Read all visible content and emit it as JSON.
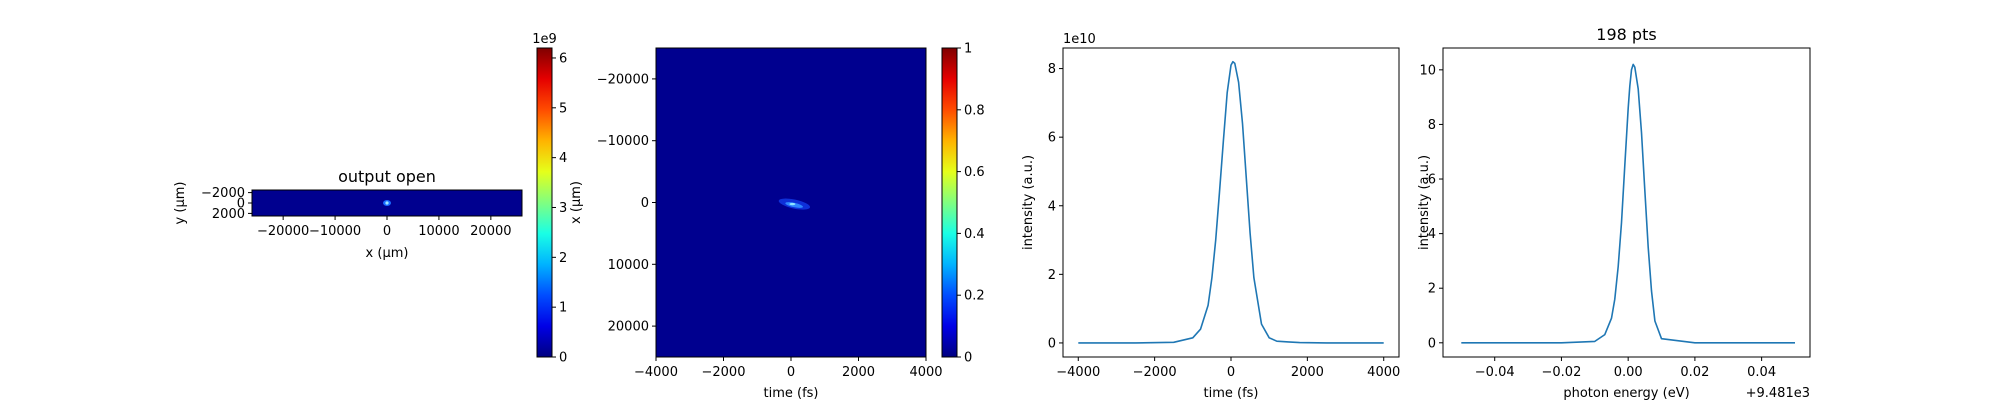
{
  "chart_data": [
    {
      "type": "heatmap",
      "title": "output open",
      "xlabel": "x (μm)",
      "ylabel": "y (μm)",
      "xlim": [
        -26000,
        26000
      ],
      "ylim": [
        2500,
        -2500
      ],
      "xticks": [
        -20000,
        -10000,
        0,
        10000,
        20000
      ],
      "yticks": [
        -2000,
        0,
        2000
      ],
      "hotspot": {
        "x": 0,
        "y": 0
      },
      "colorbar": {
        "exponent_label": "1e9",
        "vmin": 0,
        "vmax": 6.2,
        "ticks": [
          0,
          1,
          2,
          3,
          4,
          5,
          6
        ],
        "colormap": "jet"
      }
    },
    {
      "type": "heatmap",
      "xlabel": "time (fs)",
      "ylabel": "x (μm)",
      "xlim": [
        -4000,
        4000
      ],
      "ylim": [
        -25000,
        25000
      ],
      "xticks": [
        -4000,
        -2000,
        0,
        2000,
        4000
      ],
      "yticks": [
        -20000,
        -10000,
        0,
        10000,
        20000
      ],
      "hotspot": {
        "x": 100,
        "y": 250
      },
      "colorbar": {
        "vmin": 0,
        "vmax": 1.0,
        "ticks": [
          0.0,
          0.2,
          0.4,
          0.6,
          0.8,
          1.0
        ],
        "colormap": "jet"
      }
    },
    {
      "type": "line",
      "xlabel": "time (fs)",
      "ylabel": "intensity (a.u.)",
      "exponent_label": "1e10",
      "xlim": [
        -4400,
        4400
      ],
      "ylim": [
        -0.41,
        8.6
      ],
      "xticks": [
        -4000,
        -2000,
        0,
        2000,
        4000
      ],
      "yticks": [
        0,
        2,
        4,
        6,
        8
      ],
      "series": [
        {
          "color": "#1f77b4",
          "x": [
            -4000,
            -2500,
            -1500,
            -1000,
            -800,
            -600,
            -500,
            -400,
            -300,
            -200,
            -100,
            0,
            50,
            100,
            200,
            300,
            400,
            500,
            600,
            800,
            1000,
            1200,
            1500,
            1800,
            2500,
            4000
          ],
          "y": [
            0,
            0,
            0.02,
            0.15,
            0.4,
            1.1,
            1.9,
            3.0,
            4.4,
            5.9,
            7.3,
            8.1,
            8.2,
            8.15,
            7.6,
            6.4,
            4.8,
            3.2,
            1.9,
            0.55,
            0.15,
            0.05,
            0.03,
            0.01,
            0,
            0
          ]
        }
      ]
    },
    {
      "type": "line",
      "title": "198 pts",
      "xlabel": "photon energy (eV)",
      "ylabel": "intensity (a.u.)",
      "offset_label": "+9.481e3",
      "xlim": [
        -0.0555,
        0.0545
      ],
      "ylim": [
        -0.52,
        10.8
      ],
      "xticks": [
        -0.04,
        -0.02,
        0.0,
        0.02,
        0.04
      ],
      "xticklabels": [
        "−0.04",
        "−0.02",
        "0.00",
        "0.02",
        "0.04"
      ],
      "yticks": [
        0,
        2,
        4,
        6,
        8,
        10
      ],
      "series": [
        {
          "color": "#1f77b4",
          "x": [
            -0.05,
            -0.02,
            -0.01,
            -0.007,
            -0.005,
            -0.004,
            -0.003,
            -0.002,
            -0.001,
            0,
            0.0005,
            0.001,
            0.0015,
            0.002,
            0.003,
            0.004,
            0.005,
            0.006,
            0.007,
            0.008,
            0.01,
            0.02,
            0.05
          ],
          "y": [
            0,
            0,
            0.05,
            0.3,
            0.9,
            1.6,
            2.8,
            4.4,
            6.5,
            8.6,
            9.4,
            10.0,
            10.2,
            10.1,
            9.3,
            7.7,
            5.6,
            3.5,
            1.9,
            0.8,
            0.15,
            0,
            0
          ]
        }
      ]
    }
  ]
}
